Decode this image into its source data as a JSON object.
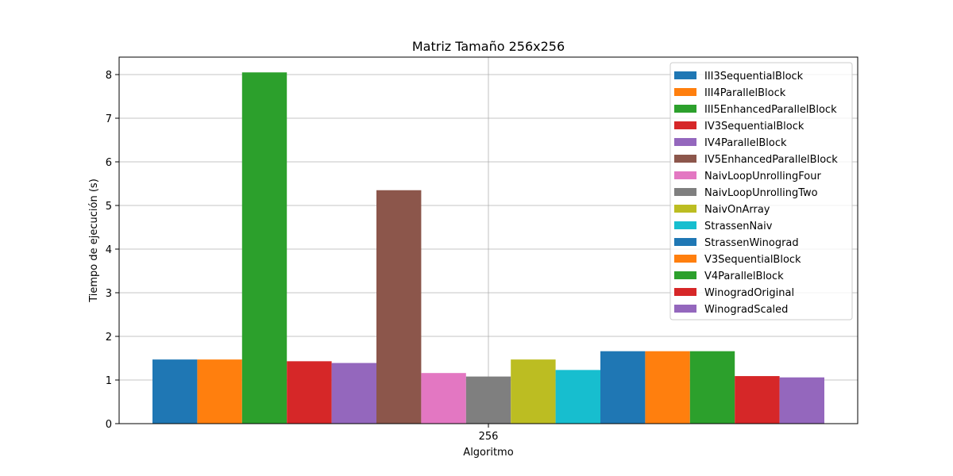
{
  "chart_data": {
    "type": "bar",
    "title": "Matriz Tamaño 256x256",
    "xlabel": "Algoritmo",
    "ylabel": "Tiempo de ejecución (s)",
    "categories": [
      "256"
    ],
    "ylim": [
      0,
      8.4
    ],
    "yticks": [
      0,
      1,
      2,
      3,
      4,
      5,
      6,
      7,
      8
    ],
    "grid": true,
    "legend_position": "top-right",
    "series": [
      {
        "name": "III3SequentialBlock",
        "values": [
          1.47
        ],
        "color": "#1f77b4"
      },
      {
        "name": "III4ParallelBlock",
        "values": [
          1.47
        ],
        "color": "#ff7f0e"
      },
      {
        "name": "III5EnhancedParallelBlock",
        "values": [
          8.05
        ],
        "color": "#2ca02c"
      },
      {
        "name": "IV3SequentialBlock",
        "values": [
          1.43
        ],
        "color": "#d62728"
      },
      {
        "name": "IV4ParallelBlock",
        "values": [
          1.39
        ],
        "color": "#9467bd"
      },
      {
        "name": "IV5EnhancedParallelBlock",
        "values": [
          5.35
        ],
        "color": "#8c564b"
      },
      {
        "name": "NaivLoopUnrollingFour",
        "values": [
          1.16
        ],
        "color": "#e377c2"
      },
      {
        "name": "NaivLoopUnrollingTwo",
        "values": [
          1.08
        ],
        "color": "#7f7f7f"
      },
      {
        "name": "NaivOnArray",
        "values": [
          1.47
        ],
        "color": "#bcbd22"
      },
      {
        "name": "StrassenNaiv",
        "values": [
          1.23
        ],
        "color": "#17becf"
      },
      {
        "name": "StrassenWinograd",
        "values": [
          1.66
        ],
        "color": "#1f77b4"
      },
      {
        "name": "V3SequentialBlock",
        "values": [
          1.66
        ],
        "color": "#ff7f0e"
      },
      {
        "name": "V4ParallelBlock",
        "values": [
          1.66
        ],
        "color": "#2ca02c"
      },
      {
        "name": "WinogradOriginal",
        "values": [
          1.09
        ],
        "color": "#d62728"
      },
      {
        "name": "WinogradScaled",
        "values": [
          1.06
        ],
        "color": "#9467bd"
      }
    ]
  }
}
